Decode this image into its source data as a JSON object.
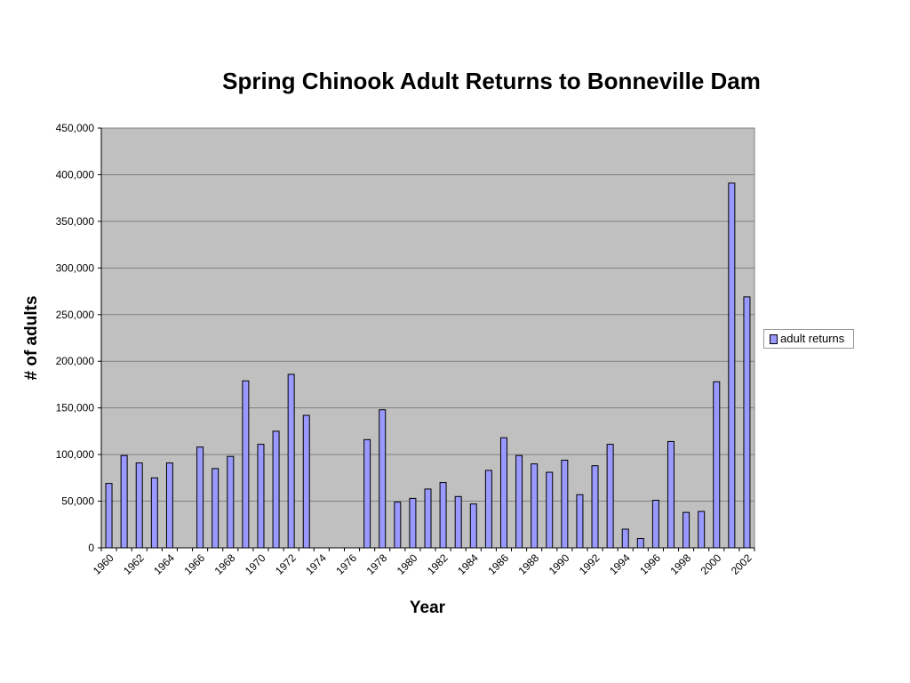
{
  "chart_data": {
    "type": "bar",
    "title": "Spring Chinook Adult Returns to Bonneville Dam",
    "xlabel": "Year",
    "ylabel": "# of adults",
    "ylim": [
      0,
      450000
    ],
    "yticks": [
      "0",
      "50,000",
      "100,000",
      "150,000",
      "200,000",
      "250,000",
      "300,000",
      "350,000",
      "400,000",
      "450,000"
    ],
    "categories": [
      "1960",
      "1961",
      "1962",
      "1963",
      "1964",
      "1965",
      "1966",
      "1967",
      "1968",
      "1969",
      "1970",
      "1971",
      "1972",
      "1973",
      "1974",
      "1975",
      "1976",
      "1977",
      "1978",
      "1979",
      "1980",
      "1981",
      "1982",
      "1983",
      "1984",
      "1985",
      "1986",
      "1987",
      "1988",
      "1989",
      "1990",
      "1991",
      "1992",
      "1993",
      "1994",
      "1995",
      "1996",
      "1997",
      "1998",
      "1999",
      "2000",
      "2001",
      "2002"
    ],
    "xtick_labels": [
      "1960",
      "1962",
      "1964",
      "1966",
      "1968",
      "1970",
      "1972",
      "1974",
      "1976",
      "1978",
      "1980",
      "1982",
      "1984",
      "1986",
      "1988",
      "1990",
      "1992",
      "1994",
      "1996",
      "1998",
      "2000",
      "2002"
    ],
    "series": [
      {
        "name": "adult returns",
        "color": "#9999ff",
        "values": [
          69000,
          99000,
          91000,
          75000,
          91000,
          null,
          108000,
          85000,
          98000,
          179000,
          111000,
          125000,
          186000,
          142000,
          null,
          null,
          null,
          116000,
          148000,
          49000,
          53000,
          63000,
          70000,
          55000,
          47000,
          83000,
          118000,
          99000,
          90000,
          81000,
          94000,
          57000,
          88000,
          111000,
          20000,
          10000,
          51000,
          114000,
          38000,
          39000,
          178000,
          391000,
          269000
        ]
      }
    ],
    "grid": true,
    "legend_position": "right",
    "plot_background": "#c0c0c0"
  }
}
